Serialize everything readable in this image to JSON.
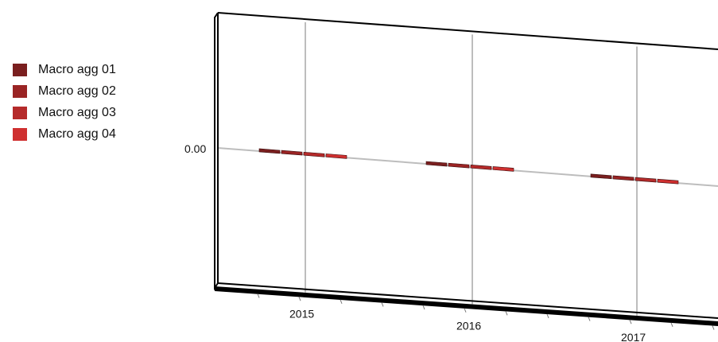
{
  "chart_data": {
    "type": "bar",
    "title": "",
    "xlabel": "",
    "ylabel": "",
    "categories": [
      "2015",
      "2016",
      "2017"
    ],
    "yticks": [
      "0.00"
    ],
    "grid": true,
    "legend_position": "left",
    "three_d": true,
    "series": [
      {
        "name": "Macro agg 01",
        "color": "#7a1f1f",
        "values": [
          0,
          0,
          0
        ]
      },
      {
        "name": "Macro agg 02",
        "color": "#9a2424",
        "values": [
          0,
          0,
          0
        ]
      },
      {
        "name": "Macro agg 03",
        "color": "#b52a2a",
        "values": [
          0,
          0,
          0
        ]
      },
      {
        "name": "Macro agg 04",
        "color": "#cf3030",
        "values": [
          0,
          0,
          0
        ]
      }
    ]
  }
}
